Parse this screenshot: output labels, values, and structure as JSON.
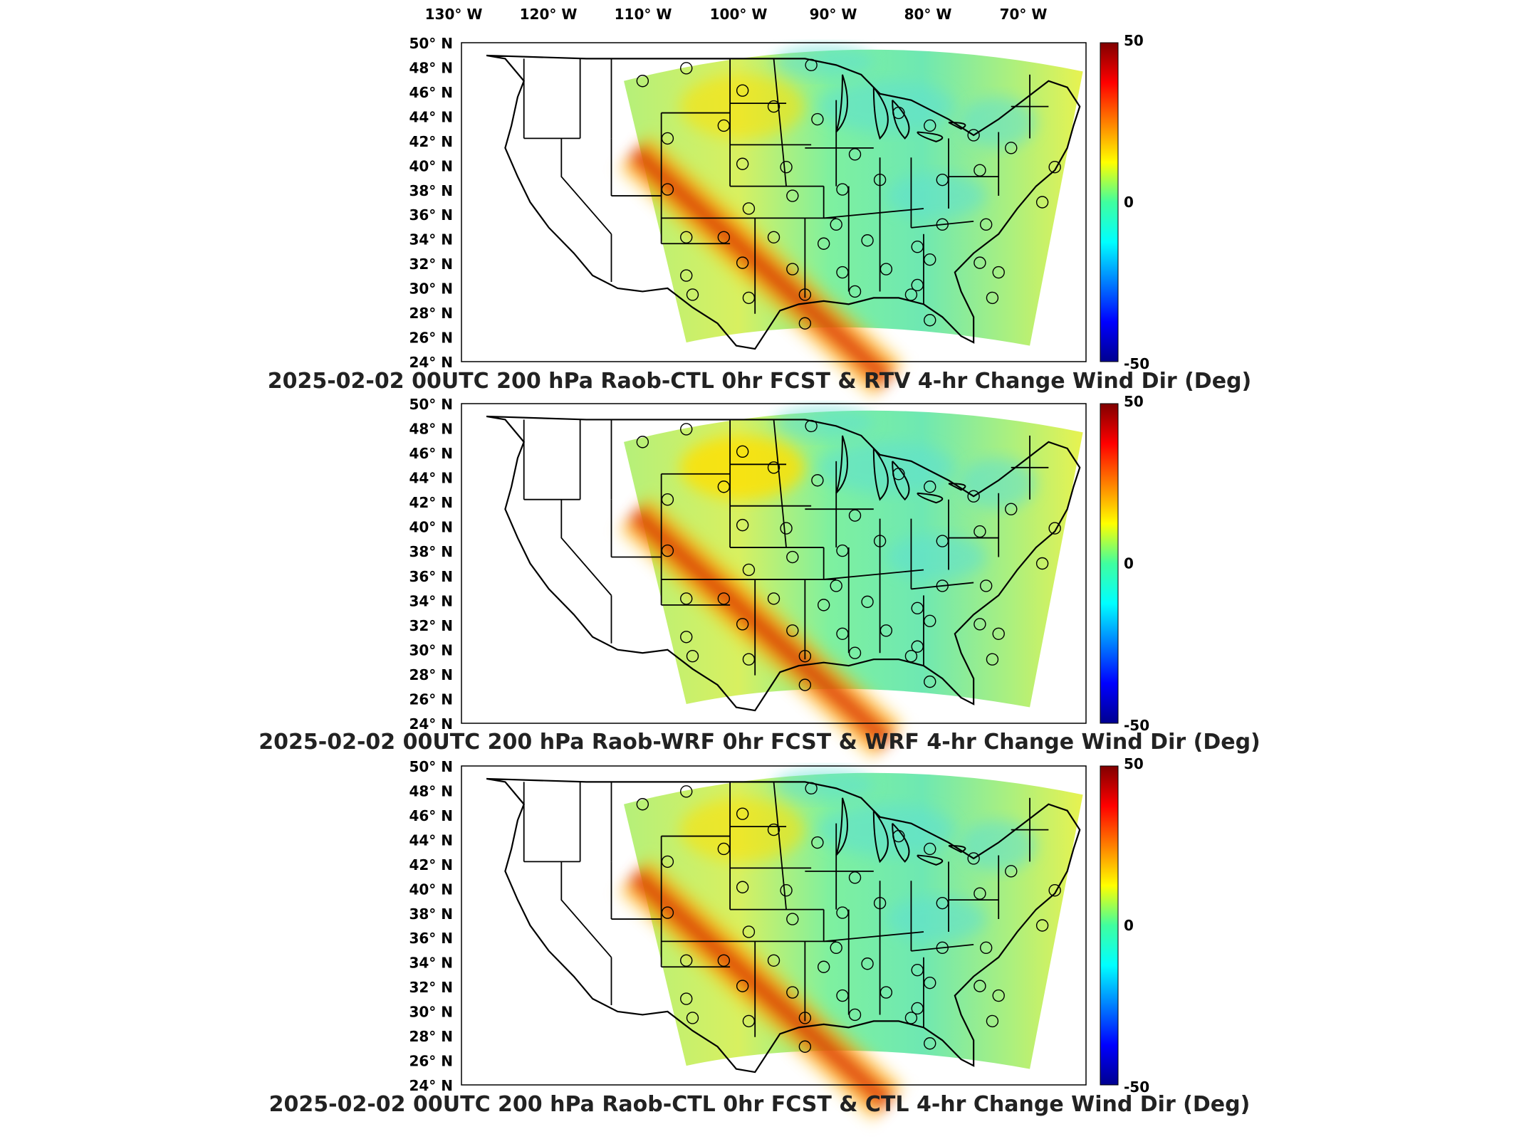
{
  "lon_labels": [
    "130° W",
    "120° W",
    "110° W",
    "100° W",
    "90° W",
    "80° W",
    "70° W"
  ],
  "lat_labels": [
    "50° N",
    "48° N",
    "46° N",
    "44° N",
    "42° N",
    "40° N",
    "38° N",
    "36° N",
    "34° N",
    "32° N",
    "30° N",
    "28° N",
    "26° N",
    "24° N"
  ],
  "colorbar": {
    "max_label": "50",
    "mid_label": "0",
    "min_label": "-50",
    "colormap": "jet"
  },
  "panels": [
    {
      "title": "2025-02-02 00UTC 200 hPa Raob-CTL 0hr FCST & RTV 4-hr Change Wind Dir (Deg)"
    },
    {
      "title": "2025-02-02 00UTC 200 hPa Raob-WRF 0hr FCST & WRF 4-hr Change Wind Dir (Deg)"
    },
    {
      "title": "2025-02-02 00UTC 200 hPa Raob-CTL 0hr FCST & CTL 4-hr Change Wind Dir (Deg)"
    }
  ]
}
